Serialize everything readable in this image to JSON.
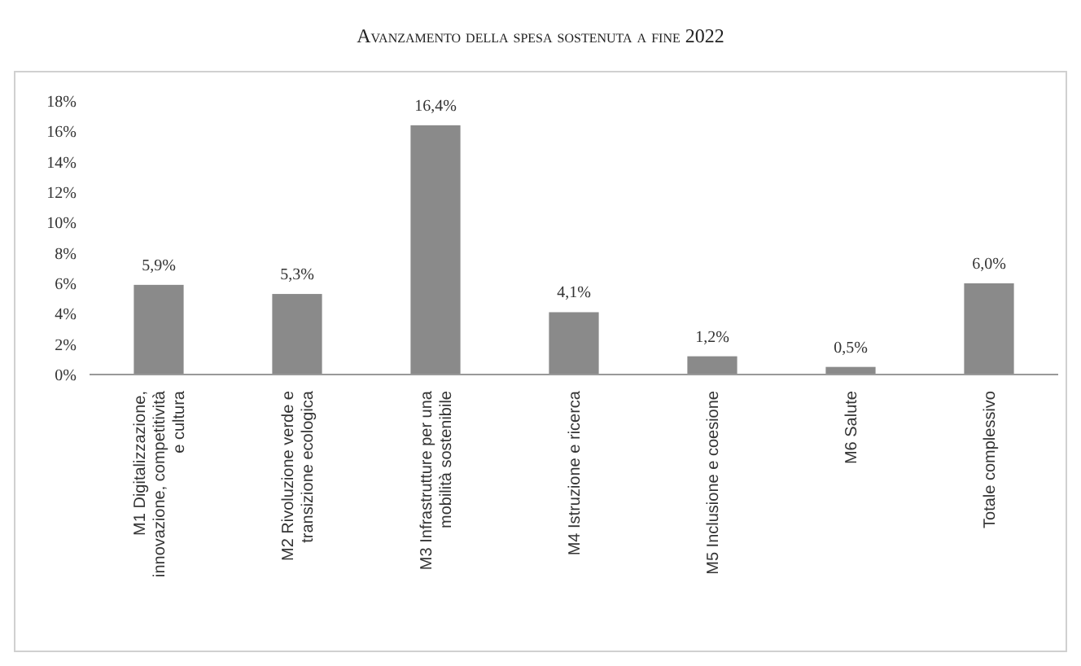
{
  "chart_data": {
    "type": "bar",
    "title": "Avanzamento della spesa sostenuta a fine 2022",
    "categories": [
      "M1 Digitalizzazione, innovazione, competitività e cultura",
      "M2 Rivoluzione verde e transizione ecologica",
      "M3 Infrastrutture per una mobilità sostenibile",
      "M4 Istruzione e ricerca",
      "M5 Inclusione e coesione",
      "M6 Salute",
      "Totale complessivo"
    ],
    "values": [
      5.9,
      5.3,
      16.4,
      4.1,
      1.2,
      0.5,
      6.0
    ],
    "value_labels": [
      "5,9%",
      "5,3%",
      "16,4%",
      "4,1%",
      "1,2%",
      "0,5%",
      "6,0%"
    ],
    "color": "#8a8a8a",
    "ylim": [
      0,
      18
    ],
    "yticks": [
      {
        "value": 0,
        "label": "0%"
      },
      {
        "value": 2,
        "label": "2%"
      },
      {
        "value": 4,
        "label": "4%"
      },
      {
        "value": 6,
        "label": "6%"
      },
      {
        "value": 8,
        "label": "8%"
      },
      {
        "value": 10,
        "label": "10%"
      },
      {
        "value": 12,
        "label": "12%"
      },
      {
        "value": 14,
        "label": "14%"
      },
      {
        "value": 16,
        "label": "16%"
      },
      {
        "value": 18,
        "label": "18%"
      }
    ],
    "grid": false
  }
}
